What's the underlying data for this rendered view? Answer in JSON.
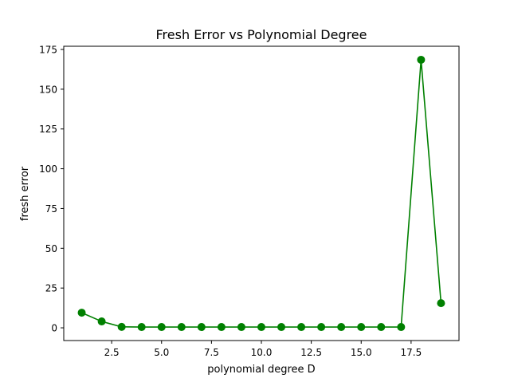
{
  "chart_data": {
    "type": "line",
    "title": "Fresh Error vs Polynomial Degree",
    "xlabel": "polynomial degree D",
    "ylabel": "fresh error",
    "xlim": [
      0.1,
      19.9
    ],
    "ylim": [
      -8.0,
      177.0
    ],
    "x_ticks": [
      2.5,
      5.0,
      7.5,
      10.0,
      12.5,
      15.0,
      17.5
    ],
    "x_tick_labels": [
      "2.5",
      "5.0",
      "7.5",
      "10.0",
      "12.5",
      "15.0",
      "17.5"
    ],
    "y_ticks": [
      0,
      25,
      50,
      75,
      100,
      125,
      150,
      175
    ],
    "y_tick_labels": [
      "0",
      "25",
      "50",
      "75",
      "100",
      "125",
      "150",
      "175"
    ],
    "grid": false,
    "series": [
      {
        "color": "#008000",
        "marker": "circle",
        "x": [
          1,
          2,
          3,
          4,
          5,
          6,
          7,
          8,
          9,
          10,
          11,
          12,
          13,
          14,
          15,
          16,
          17,
          18,
          19
        ],
        "y": [
          9.5,
          4.0,
          0.6,
          0.5,
          0.5,
          0.5,
          0.5,
          0.5,
          0.5,
          0.5,
          0.5,
          0.5,
          0.5,
          0.5,
          0.5,
          0.5,
          0.5,
          168.5,
          15.5
        ]
      }
    ]
  }
}
